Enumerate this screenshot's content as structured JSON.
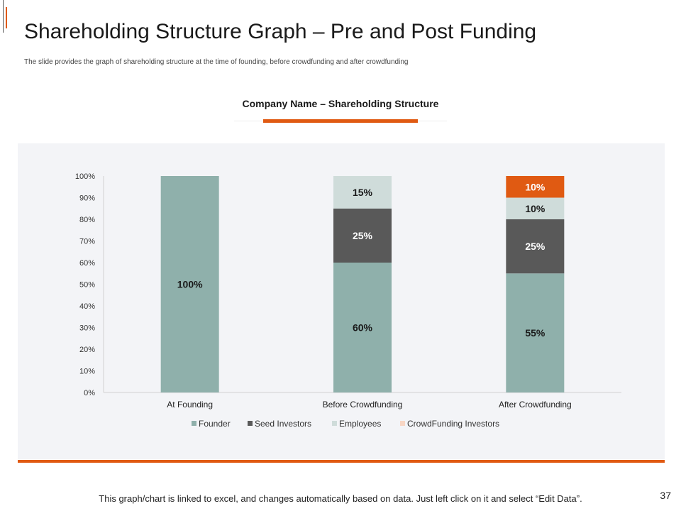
{
  "slide": {
    "title": "Shareholding Structure Graph – Pre and Post Funding",
    "subtitle": "The slide provides the graph of shareholding structure at the time of founding, before crowdfunding and after crowdfunding",
    "chart_heading": "Company Name – Shareholding Structure",
    "footnote": "This graph/chart is linked to excel, and changes automatically based on data. Just left click on it and select “Edit Data”.",
    "page_number": "37"
  },
  "colors": {
    "accent": "#e05a12"
  },
  "chart_data": {
    "type": "bar",
    "stacked": true,
    "categories": [
      "At Founding",
      "Before Crowdfunding",
      "After Crowdfunding"
    ],
    "series": [
      {
        "name": "Founder",
        "color": "#8fb0ab",
        "values": [
          100,
          60,
          55
        ]
      },
      {
        "name": "Seed Investors",
        "color": "#595959",
        "values": [
          0,
          25,
          25
        ]
      },
      {
        "name": "Employees",
        "color": "#cfdcda",
        "values": [
          0,
          15,
          10
        ]
      },
      {
        "name": "CrowdFunding Investors",
        "color": "#e05a12",
        "legend_color": "#f8d6c4",
        "values": [
          0,
          0,
          10
        ]
      }
    ],
    "ylim": [
      0,
      100
    ],
    "yticks": [
      "0%",
      "10%",
      "20%",
      "30%",
      "40%",
      "50%",
      "60%",
      "70%",
      "80%",
      "90%",
      "100%"
    ],
    "value_suffix": "%",
    "legend_position": "bottom",
    "grid": false
  }
}
